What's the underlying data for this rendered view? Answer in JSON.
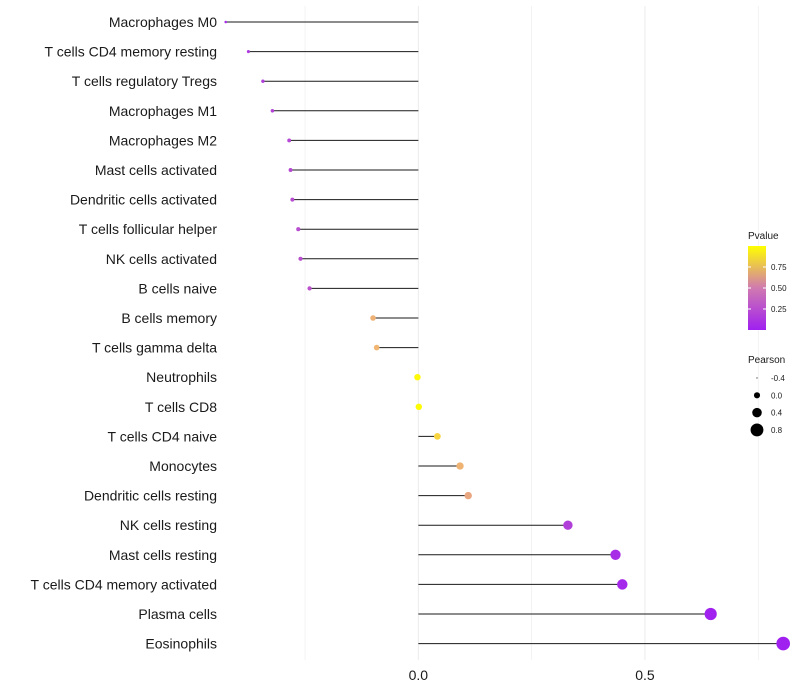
{
  "chart_data": {
    "type": "lollipop",
    "title": "",
    "xlabel": "",
    "ylabel": "",
    "xlim": [
      -0.42,
      0.82
    ],
    "x_ticks": [
      0.0,
      0.5
    ],
    "x_tick_labels": [
      "0.0",
      "0.5"
    ],
    "grid": true,
    "legend_position": "right",
    "categories": [
      "Macrophages M0",
      "T cells CD4 memory resting",
      "T cells regulatory  Tregs",
      "Macrophages M1",
      "Macrophages M2",
      "Mast cells activated",
      "Dendritic cells activated",
      "T cells follicular helper",
      "NK cells activated",
      "B cells naive",
      "B cells memory",
      "T cells gamma delta",
      "Neutrophils",
      "T cells CD8",
      "T cells CD4 naive",
      "Monocytes",
      "Dendritic cells resting",
      "NK cells resting",
      "Mast cells resting",
      "T cells CD4 memory activated",
      "Plasma cells",
      "Eosinophils"
    ],
    "pearson": [
      -0.425,
      -0.375,
      -0.343,
      -0.322,
      -0.285,
      -0.282,
      -0.278,
      -0.265,
      -0.26,
      -0.24,
      -0.1,
      -0.092,
      -0.002,
      0.001,
      0.042,
      0.092,
      0.11,
      0.33,
      0.435,
      0.45,
      0.645,
      0.805
    ],
    "pvalue": [
      0.08,
      0.15,
      0.17,
      0.2,
      0.22,
      0.23,
      0.24,
      0.25,
      0.26,
      0.28,
      0.72,
      0.74,
      0.98,
      0.99,
      0.85,
      0.73,
      0.68,
      0.17,
      0.07,
      0.05,
      0.01,
      0.001
    ],
    "color_legend": {
      "title": "Pvalue",
      "ticks": [
        0.25,
        0.5,
        0.75
      ],
      "tick_labels": [
        "0.25",
        "0.50",
        "0.75"
      ],
      "low_color": "#a020f0",
      "mid_color": "#d07ab0",
      "high_color": "#ffff00"
    },
    "size_legend": {
      "title": "Pearson",
      "values": [
        -0.4,
        0.0,
        0.4,
        0.8
      ],
      "labels": [
        "-0.4",
        "0.0",
        "0.4",
        "0.8"
      ]
    },
    "colors": {
      "segment": "#1a1a1a",
      "grid": "#ebebeb"
    }
  }
}
